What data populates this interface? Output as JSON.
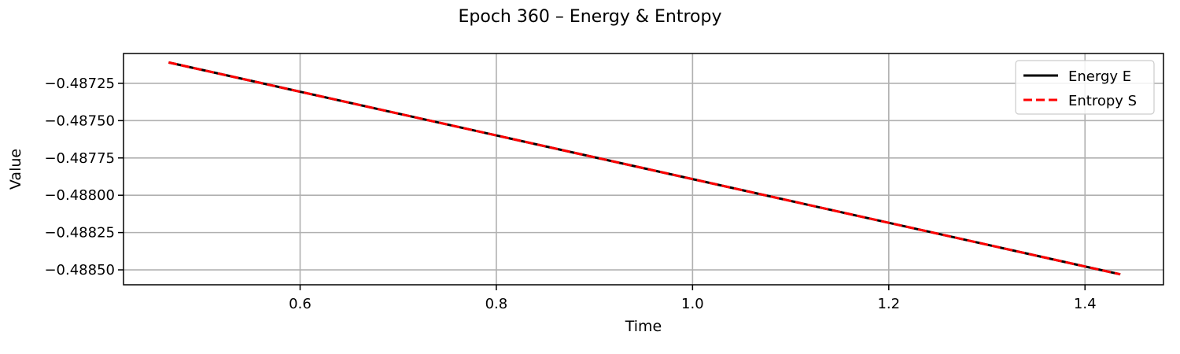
{
  "chart_data": {
    "type": "line",
    "title": "Epoch 360 – Energy & Entropy",
    "xlabel": "Time",
    "ylabel": "Value",
    "xlim": [
      0.42,
      1.48
    ],
    "ylim": [
      -0.4886,
      -0.48705
    ],
    "xticks": [
      0.6,
      0.8,
      1.0,
      1.2,
      1.4
    ],
    "xtick_labels": [
      "0.6",
      "0.8",
      "1.0",
      "1.2",
      "1.4"
    ],
    "yticks": [
      -0.48725,
      -0.4875,
      -0.48775,
      -0.488,
      -0.48825,
      -0.4885
    ],
    "ytick_labels": [
      "−0.48725",
      "−0.48750",
      "−0.48775",
      "−0.48800",
      "−0.48825",
      "−0.48850"
    ],
    "grid": true,
    "legend_position": "top-right",
    "series": [
      {
        "name": "Energy E",
        "color": "#000000",
        "style": "solid",
        "x": [
          0.466,
          1.436
        ],
        "y": [
          -0.48711,
          -0.48853
        ]
      },
      {
        "name": "Entropy S",
        "color": "#ff0000",
        "style": "dashed",
        "x": [
          0.466,
          1.436
        ],
        "y": [
          -0.48711,
          -0.48853
        ]
      }
    ]
  }
}
